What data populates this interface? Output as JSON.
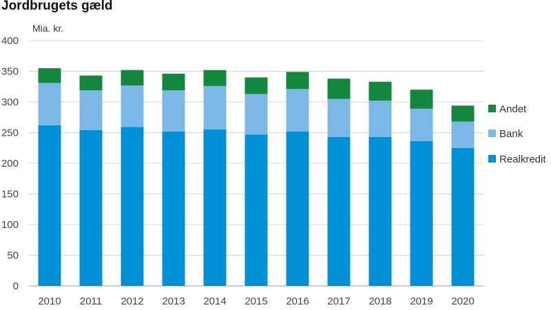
{
  "chart_data": {
    "type": "bar",
    "stacked": true,
    "title": "Jordbrugets gæld",
    "ylabel": "Mia. kr.",
    "xlabel": "",
    "categories": [
      "2010",
      "2011",
      "2012",
      "2013",
      "2014",
      "2015",
      "2016",
      "2017",
      "2018",
      "2019",
      "2020"
    ],
    "ylim": [
      0,
      400
    ],
    "yticks": [
      0,
      50,
      100,
      150,
      200,
      250,
      300,
      350,
      400
    ],
    "grid": true,
    "legend_position": "right",
    "series": [
      {
        "name": "Realkredit",
        "color": "#0090d8",
        "values": [
          262,
          254,
          259,
          252,
          255,
          247,
          252,
          243,
          243,
          236,
          225
        ]
      },
      {
        "name": "Bank",
        "color": "#7cb8e6",
        "values": [
          69,
          65,
          68,
          67,
          71,
          66,
          69,
          62,
          59,
          53,
          43
        ]
      },
      {
        "name": "Andet",
        "color": "#13883d",
        "values": [
          24,
          24,
          25,
          27,
          26,
          27,
          28,
          33,
          31,
          31,
          26
        ]
      }
    ],
    "legend_order": [
      "Andet",
      "Bank",
      "Realkredit"
    ]
  }
}
